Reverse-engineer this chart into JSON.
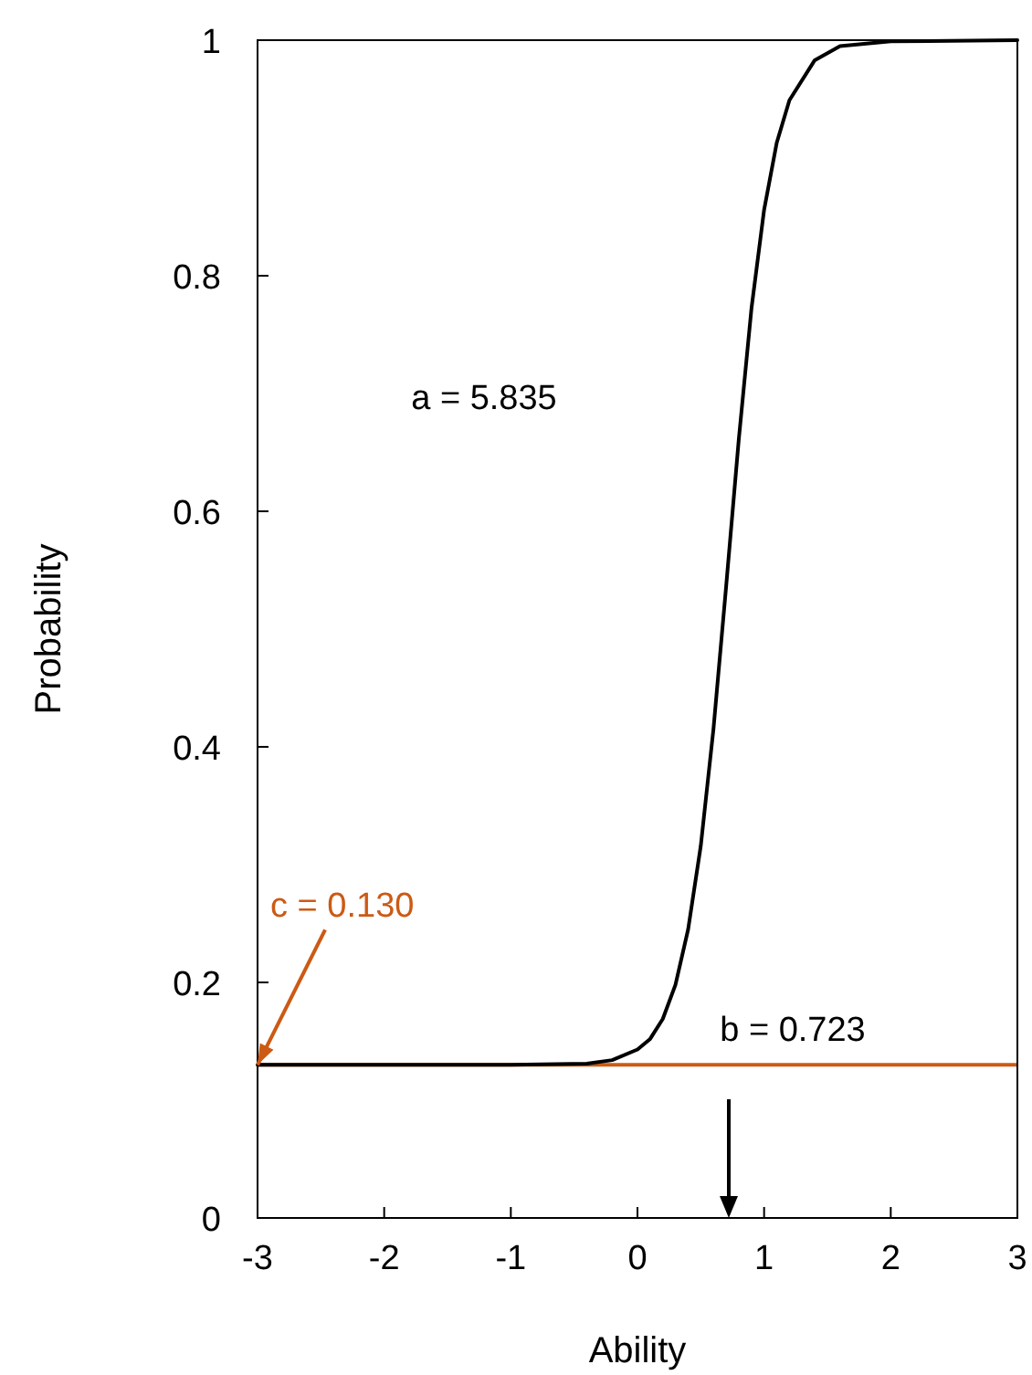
{
  "chart_data": {
    "type": "line",
    "xlabel": "Ability",
    "ylabel": "Probability",
    "xlim": [
      -3,
      3
    ],
    "ylim": [
      0,
      1
    ],
    "xticks": [
      -3,
      -2,
      -1,
      0,
      1,
      2,
      3
    ],
    "yticks": [
      0,
      0.2,
      0.4,
      0.6,
      0.8,
      1
    ],
    "grid": false,
    "marker": "none",
    "line_style": "solid",
    "x": [
      -3,
      -1,
      -0.4,
      -0.2,
      0,
      0.1,
      0.2,
      0.3,
      0.4,
      0.5,
      0.6,
      0.7,
      0.8,
      0.9,
      1.0,
      1.1,
      1.2,
      1.4,
      1.6,
      2,
      3
    ],
    "series": [
      {
        "color": "#000000",
        "values": [
          0.13,
          0.13,
          0.131,
          0.134,
          0.143,
          0.152,
          0.169,
          0.198,
          0.245,
          0.316,
          0.415,
          0.536,
          0.661,
          0.772,
          0.856,
          0.913,
          0.949,
          0.983,
          0.995,
          0.999,
          1
        ]
      }
    ],
    "ref_lines": [
      {
        "axis": "y",
        "value": 0.13,
        "color": "#cc5a14"
      }
    ],
    "annotations": [
      "a = 5.835",
      {
        "text": "c = 0.130",
        "x": -3,
        "y": 0.13
      },
      "b = 0.723"
    ]
  }
}
